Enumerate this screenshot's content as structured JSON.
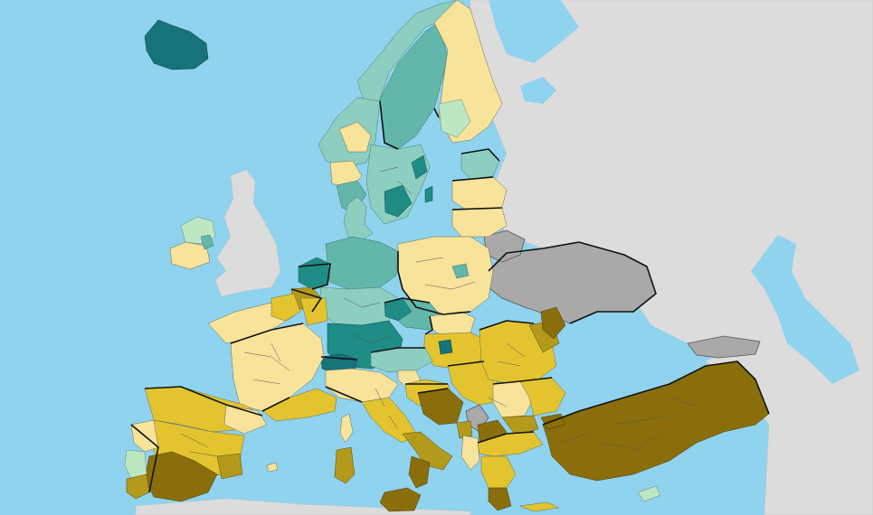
{
  "map": {
    "colors": {
      "sea": "#8fd3ee",
      "non_eu_land": "#dcdcdc",
      "no_data": "#a9a9a9",
      "light_yellow": "#f7e39a",
      "yellow": "#e3c42e",
      "olive": "#b49a1c",
      "dark_olive": "#8a6e0b",
      "pale_green": "#bde6c3",
      "teal_light": "#8ccfc0",
      "teal": "#62b7aa",
      "dark_teal": "#1f8c86",
      "darkest_teal": "#16737a"
    }
  }
}
